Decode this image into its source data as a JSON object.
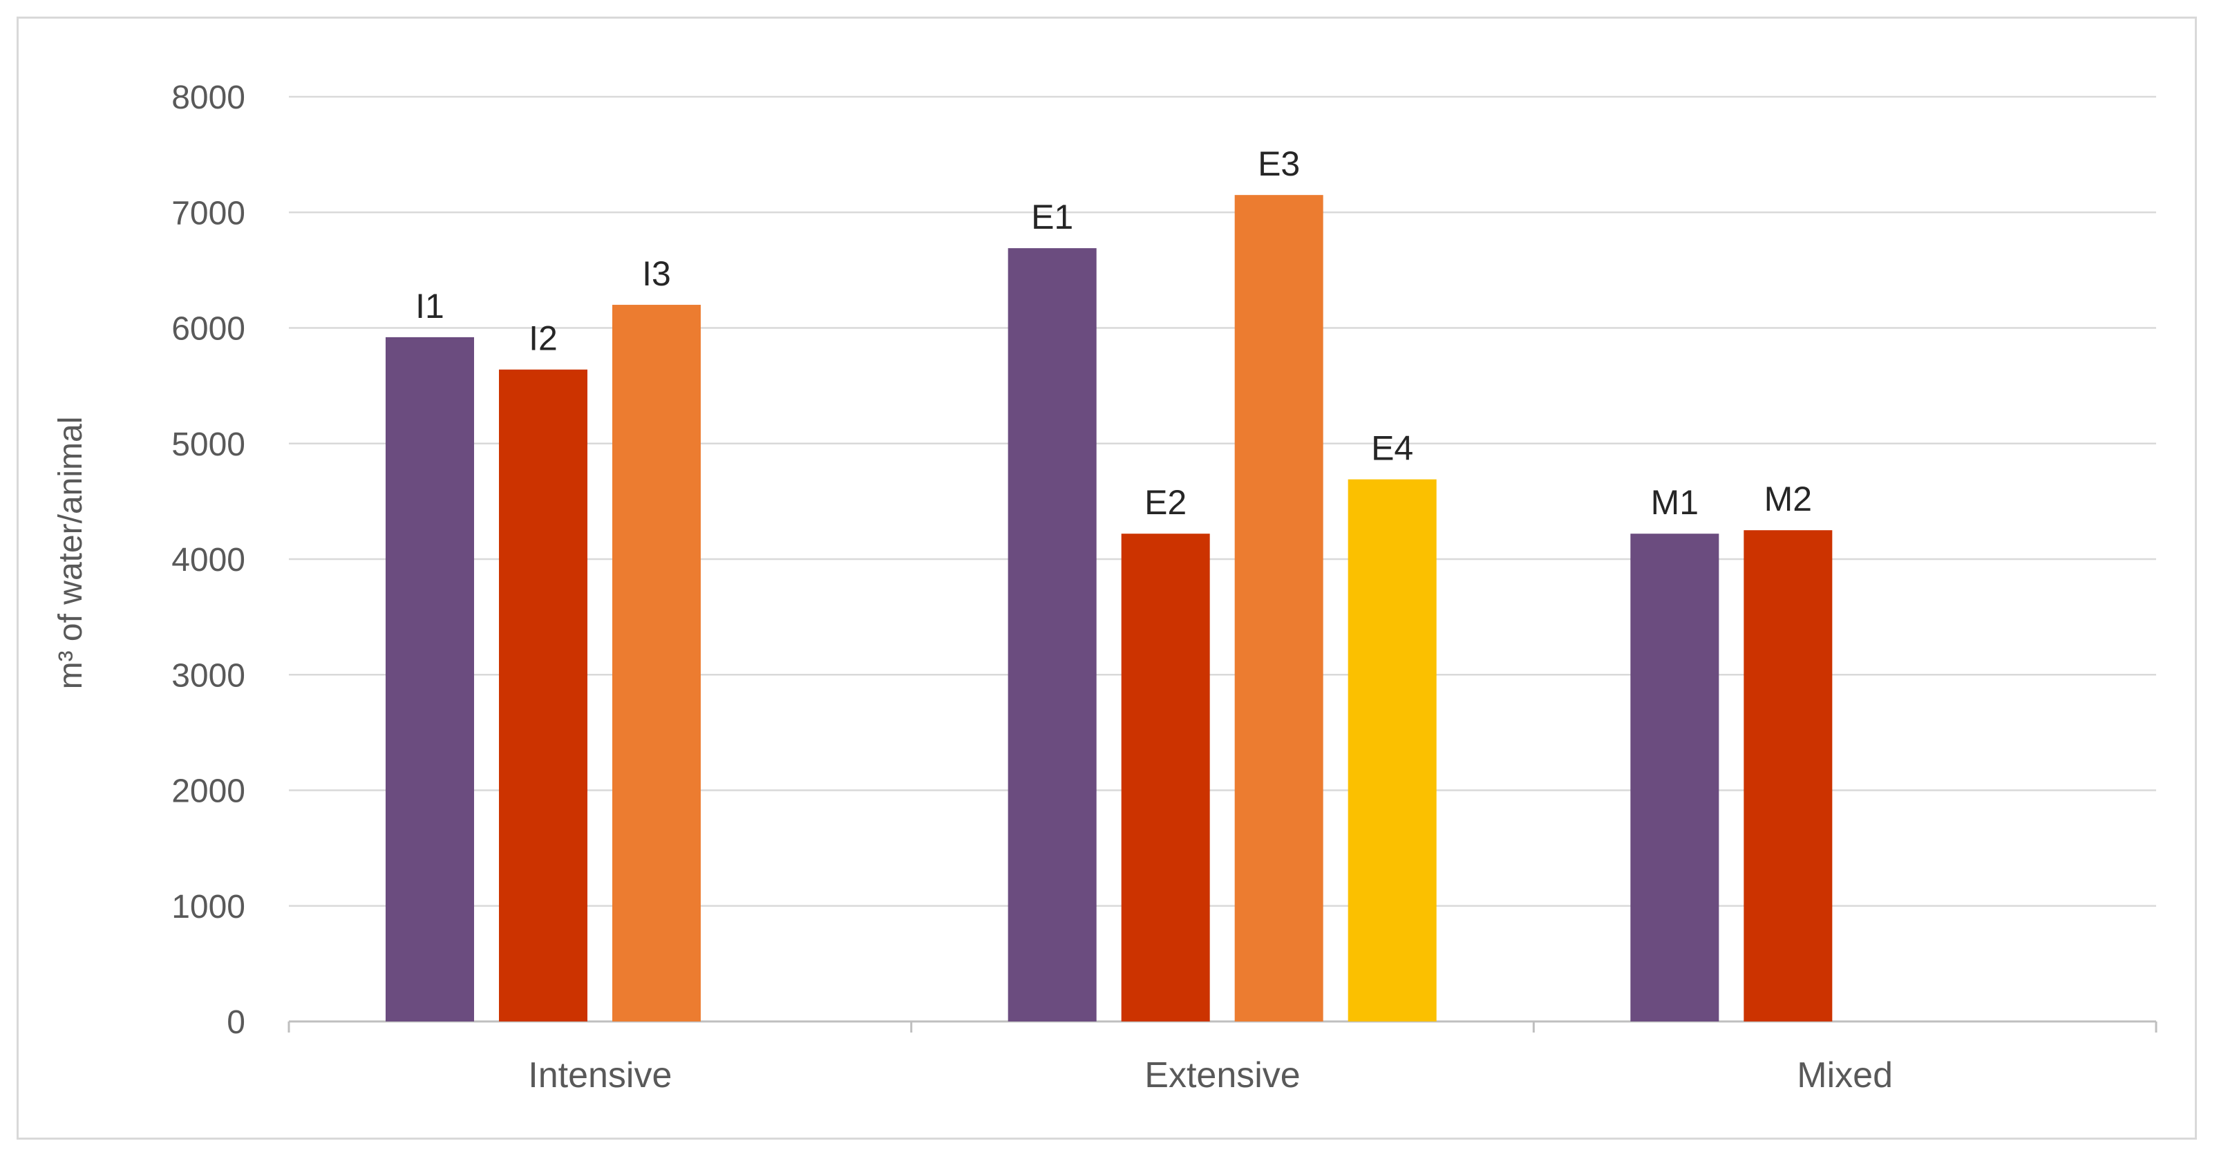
{
  "chart_data": {
    "type": "bar",
    "title": "",
    "xlabel": "",
    "ylabel": "m³ of water/animal",
    "ylim": [
      0,
      8000
    ],
    "yticks": [
      0,
      1000,
      2000,
      3000,
      4000,
      5000,
      6000,
      7000,
      8000
    ],
    "grid": true,
    "legend": "none",
    "groups": [
      {
        "category": "Intensive",
        "bars": [
          {
            "label": "I1",
            "value": 5920,
            "color": "#6b4c7f"
          },
          {
            "label": "I2",
            "value": 5640,
            "color": "#cc3300"
          },
          {
            "label": "I3",
            "value": 6200,
            "color": "#ec7c30"
          }
        ]
      },
      {
        "category": "Extensive",
        "bars": [
          {
            "label": "E1",
            "value": 6690,
            "color": "#6b4c7f"
          },
          {
            "label": "E2",
            "value": 4220,
            "color": "#cc3300"
          },
          {
            "label": "E3",
            "value": 7150,
            "color": "#ec7c30"
          },
          {
            "label": "E4",
            "value": 4690,
            "color": "#fbc000"
          }
        ]
      },
      {
        "category": "Mixed",
        "bars": [
          {
            "label": "M1",
            "value": 4220,
            "color": "#6b4c7f"
          },
          {
            "label": "M2",
            "value": 4250,
            "color": "#cc3300"
          }
        ]
      }
    ]
  },
  "colors": {
    "gridline": "#d9d9d9",
    "axis": "#bfbfbf"
  }
}
